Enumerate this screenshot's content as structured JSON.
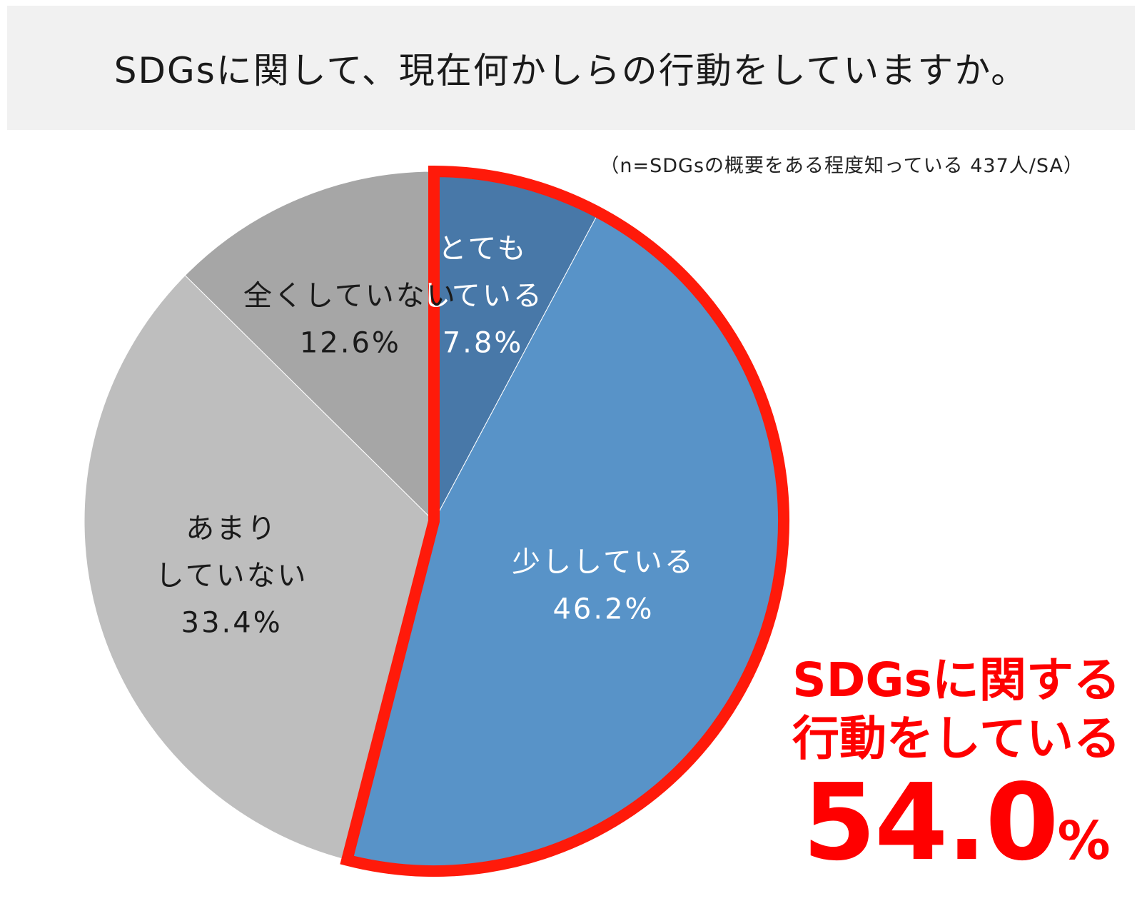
{
  "header": {
    "title": "SDGsに関して、現在何かしらの行動をしていますか。"
  },
  "note": "（n=SDGsの概要をある程度知っている 437人/SA）",
  "chart_data": {
    "type": "pie",
    "slices": [
      {
        "label": [
          "とても",
          "している"
        ],
        "value": 7.8,
        "value_text": "7.8%",
        "color": "#4878a8",
        "text_color": "#ffffff"
      },
      {
        "label": [
          "少ししている"
        ],
        "value": 46.2,
        "value_text": "46.2%",
        "color": "#5893c8",
        "text_color": "#ffffff"
      },
      {
        "label": [
          "あまり",
          "していない"
        ],
        "value": 33.4,
        "value_text": "33.4%",
        "color": "#bebebe",
        "text_color": "#1a1a1a"
      },
      {
        "label": [
          "全くしていない"
        ],
        "value": 12.6,
        "value_text": "12.6%",
        "color": "#a6a6a6",
        "text_color": "#1a1a1a"
      }
    ],
    "start": "12 o'clock",
    "direction": "clockwise",
    "highlight": {
      "slices": [
        0,
        1
      ],
      "outline_color": "#ff1a0a"
    }
  },
  "callout": {
    "line1": "SDGsに関する",
    "line2": "行動をしている",
    "value": "54.0",
    "unit": "%",
    "color": "#ff0000"
  }
}
